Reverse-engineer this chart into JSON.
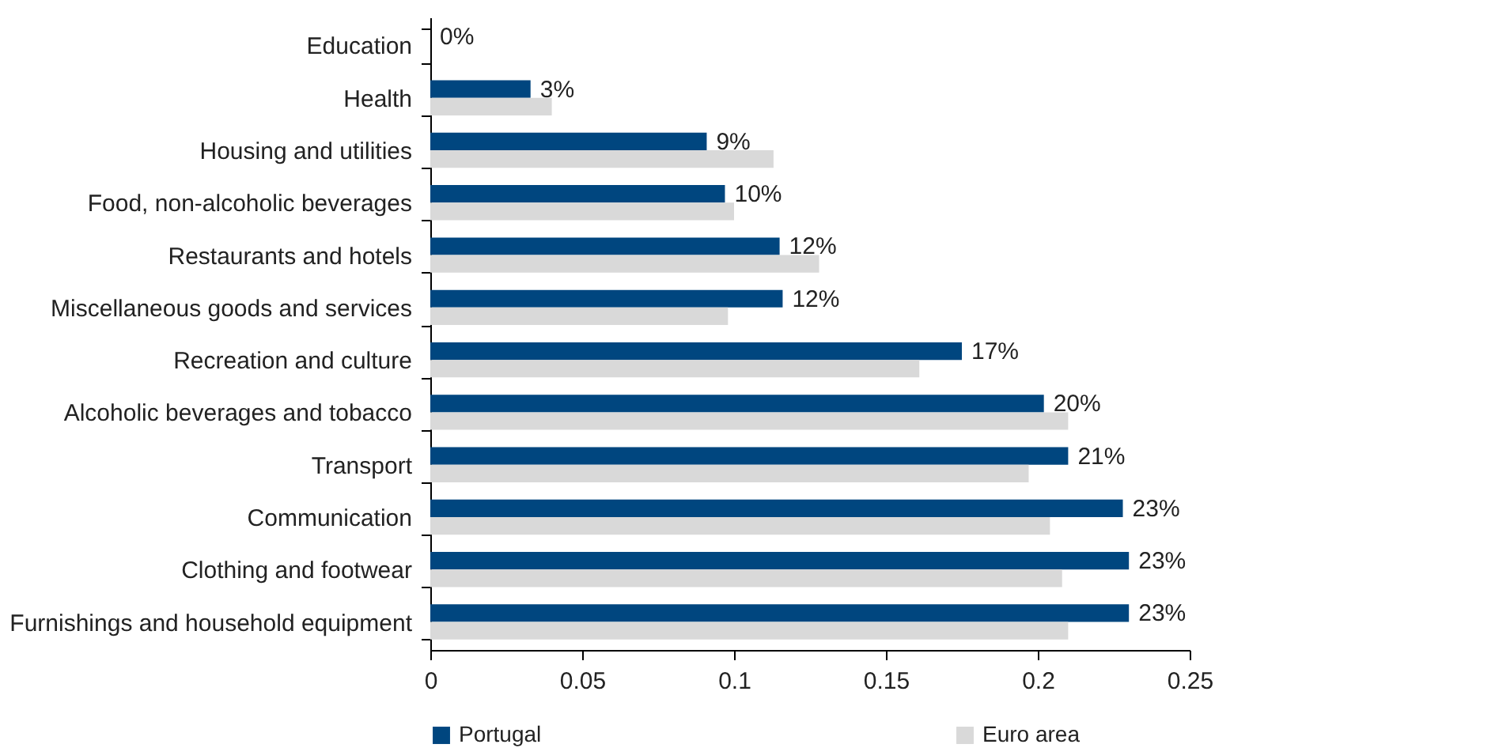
{
  "chart_data": {
    "type": "bar",
    "orientation": "horizontal",
    "categories": [
      "Education",
      "Health",
      "Housing and utilities",
      "Food, non-alcoholic beverages",
      "Restaurants and hotels",
      "Miscellaneous goods and services",
      "Recreation and culture",
      "Alcoholic beverages and tobacco",
      "Transport",
      "Communication",
      "Clothing and footwear",
      "Furnishings and household equipment"
    ],
    "series": [
      {
        "name": "Portugal",
        "color": "#00467f",
        "values": [
          0,
          0.033,
          0.091,
          0.097,
          0.115,
          0.116,
          0.175,
          0.202,
          0.21,
          0.228,
          0.23,
          0.23
        ],
        "value_labels": [
          "0%",
          "3%",
          "9%",
          "10%",
          "12%",
          "12%",
          "17%",
          "20%",
          "21%",
          "23%",
          "23%",
          "23%"
        ]
      },
      {
        "name": "Euro area",
        "color": "#d9d9d9",
        "values": [
          0,
          0.04,
          0.113,
          0.1,
          0.128,
          0.098,
          0.161,
          0.21,
          0.197,
          0.204,
          0.208,
          0.21
        ]
      }
    ],
    "xlim": [
      0,
      0.25
    ],
    "xticks": [
      0,
      0.05,
      0.1,
      0.15,
      0.2,
      0.25
    ],
    "legend": "bottom",
    "grid": false
  }
}
